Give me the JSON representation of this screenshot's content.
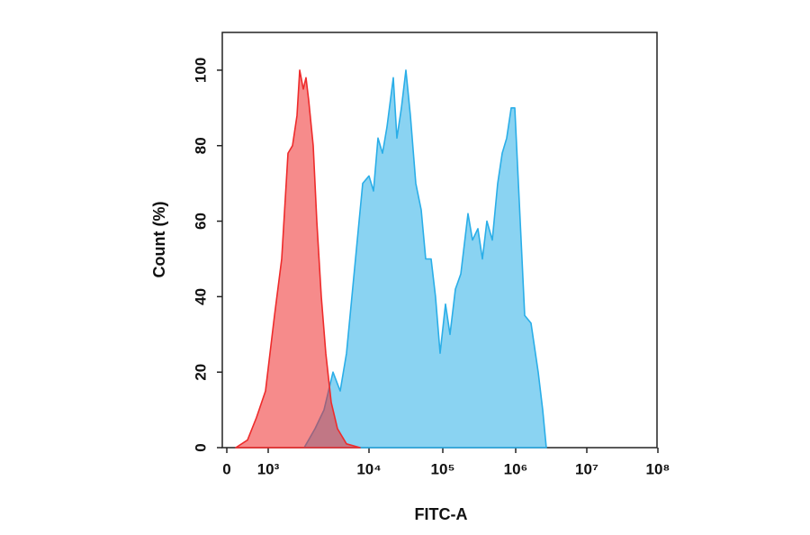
{
  "chart_data": {
    "type": "area",
    "x_label": "FITC-A",
    "y_label": "Count (%)",
    "xlim": [
      0,
      100000000
    ],
    "ylim": [
      0,
      110
    ],
    "xticks": [
      0,
      {
        "value": 1000,
        "label": "10³"
      },
      {
        "value": 10000,
        "label": "10⁴"
      },
      {
        "value": 100000,
        "label": "10⁵"
      },
      {
        "value": 1000000,
        "label": "10⁶"
      },
      {
        "value": 10000000,
        "label": "10⁷"
      },
      {
        "value": 100000000,
        "label": "10⁸"
      }
    ],
    "yticks": [
      0,
      20,
      40,
      60,
      80,
      100
    ],
    "series": [
      {
        "color": "#2aaee8",
        "x": [
          2274,
          2913,
          3580,
          4394,
          5176,
          5986,
          7345,
          8659,
          10000,
          11506,
          13240,
          15240,
          17530,
          21330,
          23880,
          27470,
          31620,
          36390,
          43040,
          50900,
          58610,
          69350,
          79760,
          91860,
          108900,
          125500,
          148900,
          176600,
          221700,
          255200,
          302700,
          349200,
          402700,
          477500,
          566200,
          652800,
          753600,
          867000,
          972000,
          1091000,
          1339000,
          1642000,
          2071000,
          2398000,
          2692000
        ],
        "values": [
          0,
          5,
          10,
          20,
          15,
          25,
          50,
          70,
          72,
          68,
          82,
          78,
          85,
          98,
          82,
          90,
          100,
          88,
          70,
          63,
          50,
          50,
          40,
          25,
          38,
          30,
          42,
          46,
          62,
          55,
          58,
          50,
          60,
          55,
          70,
          78,
          82,
          90,
          90,
          70,
          35,
          33,
          20,
          10,
          0
        ]
      },
      {
        "color": "#ee2b2b",
        "x": [
          217,
          500,
          717,
          935,
          1155,
          1361,
          1572,
          1742,
          1930,
          2054,
          2229,
          2371,
          2522,
          2793,
          3035,
          3362,
          3724,
          4217,
          4870,
          5986,
          8150
        ],
        "values": [
          0,
          2,
          8,
          15,
          35,
          50,
          78,
          80,
          88,
          100,
          95,
          98,
          92,
          80,
          60,
          40,
          25,
          12,
          5,
          1,
          0
        ]
      }
    ]
  }
}
